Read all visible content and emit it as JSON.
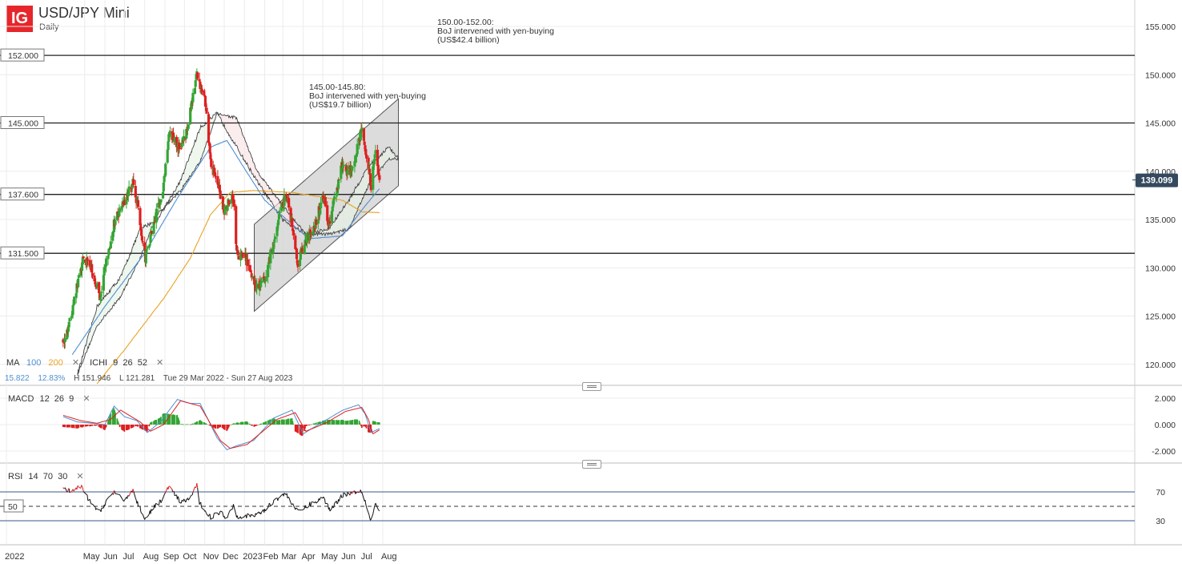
{
  "header": {
    "logo_text": "IG",
    "title": "USD/JPY Mini",
    "interval": "Daily"
  },
  "indicators_bar": {
    "ma_label": "MA",
    "ma_periods": [
      "100",
      "200"
    ],
    "ma_colors": [
      "#4f8fd1",
      "#e8a325"
    ],
    "ichi_label": "ICHI",
    "ichi_params": "9  26  52",
    "stats": {
      "ma100_value": "15.822",
      "ma200_value": "12.83%",
      "high": "H 151.946",
      "low": "L 121.281",
      "range": "Tue 29 Mar 2022 - Sun 27 Aug 2023"
    },
    "close_glyph": "✕"
  },
  "macd_header": {
    "label": "MACD",
    "params": "12  26  9"
  },
  "rsi_header": {
    "label": "RSI",
    "params": "14  70  30"
  },
  "annotations": [
    {
      "lines": [
        "150.00-152.00:",
        "BoJ intervened with yen-buying",
        "(US$42.4 billion)"
      ]
    },
    {
      "lines": [
        "145.00-145.80:",
        "BoJ intervened with yen-buying",
        "(US$19.7 billion)"
      ]
    }
  ],
  "last_price_badge": "139.099",
  "colors": {
    "up": "#33a534",
    "down": "#dd2020",
    "ma100": "#4f8fd1",
    "ma200": "#e8a325",
    "macd_line": "#4f8fd1",
    "signal_line": "#dd2020",
    "badge_bg": "#34495e",
    "channel_fill": "#d8d8d8"
  },
  "chart_data": [
    {
      "type": "candlestick",
      "title": "USD/JPY Mini",
      "interval": "Daily",
      "ylim": [
        117,
        157
      ],
      "y_ticks": [
        "155.000",
        "150.000",
        "145.000",
        "140.000",
        "135.000",
        "130.000",
        "125.000",
        "120.000"
      ],
      "x_ticks": [
        "2022",
        "May",
        "Jun",
        "Jul",
        "Aug",
        "Sep",
        "Oct",
        "Nov",
        "Dec",
        "2023",
        "Feb",
        "Mar",
        "Apr",
        "May",
        "Jun",
        "Jul",
        "Aug"
      ],
      "close_path": [
        [
          "2022-03-29",
          122.5
        ],
        [
          "2022-04-08",
          124.3
        ],
        [
          "2022-04-20",
          128.3
        ],
        [
          "2022-04-28",
          130.8
        ],
        [
          "2022-05-09",
          130.6
        ],
        [
          "2022-05-24",
          127.0
        ],
        [
          "2022-06-01",
          130.0
        ],
        [
          "2022-06-15",
          134.5
        ],
        [
          "2022-06-29",
          136.6
        ],
        [
          "2022-07-14",
          139.0
        ],
        [
          "2022-07-22",
          136.2
        ],
        [
          "2022-08-02",
          131.0
        ],
        [
          "2022-08-12",
          133.5
        ],
        [
          "2022-08-30",
          138.7
        ],
        [
          "2022-09-07",
          144.0
        ],
        [
          "2022-09-22",
          142.5
        ],
        [
          "2022-10-05",
          144.1
        ],
        [
          "2022-10-20",
          150.0
        ],
        [
          "2022-10-24",
          149.0
        ],
        [
          "2022-11-01",
          148.0
        ],
        [
          "2022-11-10",
          141.0
        ],
        [
          "2022-11-17",
          139.5
        ],
        [
          "2022-12-01",
          136.0
        ],
        [
          "2022-12-15",
          137.5
        ],
        [
          "2022-12-20",
          131.5
        ],
        [
          "2023-01-03",
          131.0
        ],
        [
          "2023-01-16",
          128.0
        ],
        [
          "2023-02-02",
          128.7
        ],
        [
          "2023-02-10",
          131.3
        ],
        [
          "2023-03-02",
          137.0
        ],
        [
          "2023-03-08",
          137.5
        ],
        [
          "2023-03-24",
          130.5
        ],
        [
          "2023-04-03",
          132.5
        ],
        [
          "2023-04-19",
          134.5
        ],
        [
          "2023-05-02",
          137.3
        ],
        [
          "2023-05-11",
          134.5
        ],
        [
          "2023-05-30",
          140.5
        ],
        [
          "2023-06-13",
          140.0
        ],
        [
          "2023-06-30",
          144.5
        ],
        [
          "2023-07-14",
          138.5
        ],
        [
          "2023-07-21",
          141.8
        ],
        [
          "2023-07-27",
          139.1
        ]
      ],
      "ma100_path": [
        [
          "2022-04-12",
          121.0
        ],
        [
          "2022-06-01",
          126.0
        ],
        [
          "2022-08-01",
          131.5
        ],
        [
          "2022-09-20",
          137.2
        ],
        [
          "2022-11-10",
          142.5
        ],
        [
          "2022-12-05",
          143.2
        ],
        [
          "2022-12-30",
          140.5
        ],
        [
          "2023-02-01",
          137.0
        ],
        [
          "2023-03-15",
          134.5
        ],
        [
          "2023-04-10",
          133.0
        ],
        [
          "2023-05-31",
          133.3
        ],
        [
          "2023-06-30",
          136.0
        ],
        [
          "2023-07-27",
          138.2
        ]
      ],
      "ma200_path": [
        [
          "2022-05-20",
          118.0
        ],
        [
          "2022-07-01",
          121.5
        ],
        [
          "2022-09-01",
          127.0
        ],
        [
          "2022-10-10",
          131.0
        ],
        [
          "2022-11-10",
          135.5
        ],
        [
          "2022-12-10",
          137.8
        ],
        [
          "2023-01-15",
          138.0
        ],
        [
          "2023-03-15",
          137.8
        ],
        [
          "2023-05-31",
          137.0
        ],
        [
          "2023-06-30",
          135.8
        ],
        [
          "2023-07-27",
          135.7
        ]
      ],
      "ichimoku_span_a": [
        [
          "2022-04-20",
          119.0
        ],
        [
          "2022-05-20",
          126.0
        ],
        [
          "2022-06-25",
          129.0
        ],
        [
          "2022-07-25",
          134.0
        ],
        [
          "2022-08-20",
          135.0
        ],
        [
          "2022-09-25",
          139.0
        ],
        [
          "2022-10-25",
          144.5
        ],
        [
          "2022-11-20",
          146.0
        ],
        [
          "2022-12-20",
          142.5
        ],
        [
          "2023-01-20",
          139.0
        ],
        [
          "2023-02-28",
          135.0
        ],
        [
          "2023-04-05",
          133.5
        ],
        [
          "2023-05-10",
          134.0
        ],
        [
          "2023-06-10",
          137.0
        ],
        [
          "2023-07-10",
          140.5
        ],
        [
          "2023-08-10",
          142.5
        ],
        [
          "2023-08-25",
          141.3
        ]
      ],
      "ichimoku_span_b": [
        [
          "2022-04-20",
          119.0
        ],
        [
          "2022-05-20",
          124.0
        ],
        [
          "2022-06-25",
          127.0
        ],
        [
          "2022-07-25",
          131.0
        ],
        [
          "2022-08-20",
          135.5
        ],
        [
          "2022-09-25",
          138.0
        ],
        [
          "2022-10-25",
          141.0
        ],
        [
          "2022-11-20",
          146.0
        ],
        [
          "2022-12-20",
          145.5
        ],
        [
          "2023-01-20",
          140.0
        ],
        [
          "2023-02-28",
          136.5
        ],
        [
          "2023-04-05",
          133.5
        ],
        [
          "2023-05-10",
          133.5
        ],
        [
          "2023-06-10",
          134.0
        ],
        [
          "2023-07-10",
          138.5
        ],
        [
          "2023-08-10",
          141.3
        ],
        [
          "2023-08-25",
          141.3
        ]
      ],
      "horizontal_levels": [
        152.0,
        145.0,
        137.6,
        131.5
      ],
      "level_labels": [
        "152.000",
        "145.000",
        "137.600",
        "131.500"
      ],
      "channel": {
        "upper": [
          [
            "2023-01-16",
            134.5
          ],
          [
            "2023-08-25",
            147.5
          ]
        ],
        "lower": [
          [
            "2023-01-16",
            125.5
          ],
          [
            "2023-08-25",
            138.5
          ]
        ]
      },
      "last_price": 139.099
    },
    {
      "type": "macd",
      "params": [
        12,
        26,
        9
      ],
      "ylim": [
        -2.8,
        2.8
      ],
      "y_ticks": [
        "2.000",
        "0.000",
        "-2.000"
      ],
      "macd_path": [
        [
          "2022-03-29",
          0.6
        ],
        [
          "2022-04-20",
          0.2
        ],
        [
          "2022-05-12",
          0.1
        ],
        [
          "2022-06-01",
          0.0
        ],
        [
          "2022-06-15",
          1.4
        ],
        [
          "2022-07-01",
          0.6
        ],
        [
          "2022-07-20",
          0.3
        ],
        [
          "2022-08-05",
          -0.6
        ],
        [
          "2022-08-25",
          0.2
        ],
        [
          "2022-09-20",
          1.9
        ],
        [
          "2022-10-10",
          1.6
        ],
        [
          "2022-10-25",
          1.6
        ],
        [
          "2022-11-20",
          -1.0
        ],
        [
          "2022-12-05",
          -1.9
        ],
        [
          "2022-12-20",
          -1.6
        ],
        [
          "2023-01-15",
          -1.2
        ],
        [
          "2023-02-15",
          0.5
        ],
        [
          "2023-03-15",
          1.1
        ],
        [
          "2023-04-01",
          -0.7
        ],
        [
          "2023-05-01",
          0.2
        ],
        [
          "2023-06-01",
          1.1
        ],
        [
          "2023-06-25",
          1.5
        ],
        [
          "2023-07-05",
          0.8
        ],
        [
          "2023-07-14",
          -0.6
        ],
        [
          "2023-07-27",
          -0.3
        ]
      ],
      "signal_path": [
        [
          "2022-03-29",
          0.7
        ],
        [
          "2022-04-25",
          0.3
        ],
        [
          "2022-05-20",
          0.1
        ],
        [
          "2022-06-10",
          0.4
        ],
        [
          "2022-06-25",
          1.1
        ],
        [
          "2022-07-25",
          0.2
        ],
        [
          "2022-08-10",
          -0.5
        ],
        [
          "2022-08-30",
          0.0
        ],
        [
          "2022-09-25",
          1.8
        ],
        [
          "2022-10-25",
          1.4
        ],
        [
          "2022-11-25",
          -1.2
        ],
        [
          "2022-12-10",
          -1.8
        ],
        [
          "2023-01-05",
          -1.5
        ],
        [
          "2023-02-20",
          0.4
        ],
        [
          "2023-03-20",
          0.9
        ],
        [
          "2023-04-05",
          -0.5
        ],
        [
          "2023-05-05",
          0.1
        ],
        [
          "2023-06-05",
          1.0
        ],
        [
          "2023-06-30",
          1.3
        ],
        [
          "2023-07-10",
          0.4
        ],
        [
          "2023-07-17",
          -0.7
        ],
        [
          "2023-07-27",
          -0.4
        ]
      ]
    },
    {
      "type": "rsi",
      "params": [
        14,
        70,
        30
      ],
      "ylim": [
        10,
        90
      ],
      "levels": [
        70,
        50,
        30
      ],
      "level_labels": [
        "70",
        "50",
        "30"
      ],
      "rsi_path": [
        [
          "2022-03-29",
          75
        ],
        [
          "2022-04-10",
          70
        ],
        [
          "2022-04-25",
          78
        ],
        [
          "2022-05-10",
          55
        ],
        [
          "2022-05-24",
          42
        ],
        [
          "2022-06-05",
          60
        ],
        [
          "2022-06-15",
          70
        ],
        [
          "2022-06-29",
          58
        ],
        [
          "2022-07-14",
          72
        ],
        [
          "2022-07-22",
          52
        ],
        [
          "2022-08-02",
          33
        ],
        [
          "2022-08-15",
          48
        ],
        [
          "2022-08-30",
          62
        ],
        [
          "2022-09-07",
          78
        ],
        [
          "2022-09-25",
          55
        ],
        [
          "2022-10-10",
          62
        ],
        [
          "2022-10-20",
          79
        ],
        [
          "2022-10-24",
          55
        ],
        [
          "2022-11-10",
          35
        ],
        [
          "2022-11-25",
          42
        ],
        [
          "2022-12-05",
          34
        ],
        [
          "2022-12-15",
          52
        ],
        [
          "2022-12-20",
          36
        ],
        [
          "2023-01-16",
          37
        ],
        [
          "2023-02-02",
          45
        ],
        [
          "2023-02-15",
          58
        ],
        [
          "2023-03-05",
          68
        ],
        [
          "2023-03-24",
          42
        ],
        [
          "2023-04-10",
          52
        ],
        [
          "2023-05-02",
          62
        ],
        [
          "2023-05-12",
          45
        ],
        [
          "2023-06-01",
          66
        ],
        [
          "2023-06-30",
          72
        ],
        [
          "2023-07-14",
          30
        ],
        [
          "2023-07-21",
          55
        ],
        [
          "2023-07-27",
          42
        ]
      ]
    }
  ]
}
